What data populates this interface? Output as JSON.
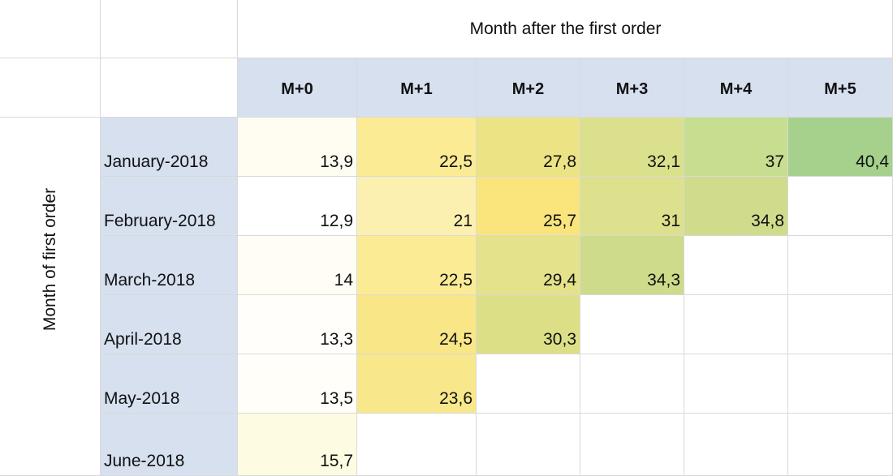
{
  "chart_data": {
    "type": "heatmap",
    "title": "",
    "xlabel": "Month after the first order",
    "ylabel": "Month of first order",
    "columns": [
      "M+0",
      "M+1",
      "M+2",
      "M+3",
      "M+4",
      "M+5"
    ],
    "rows": [
      "January-2018",
      "February-2018",
      "March-2018",
      "April-2018",
      "May-2018",
      "June-2018"
    ],
    "values": [
      [
        "13,9",
        "22,5",
        "27,8",
        "32,1",
        "37",
        "40,4"
      ],
      [
        "12,9",
        "21",
        "25,7",
        "31",
        "34,8",
        null
      ],
      [
        "14",
        "22,5",
        "29,4",
        "34,3",
        null,
        null
      ],
      [
        "13,3",
        "24,5",
        "30,3",
        null,
        null,
        null
      ],
      [
        "13,5",
        "23,6",
        null,
        null,
        null,
        null
      ],
      [
        "15,7",
        null,
        null,
        null,
        null,
        null
      ]
    ],
    "cell_colors": [
      [
        "#fffdf2",
        "#fbeb95",
        "#ece484",
        "#dbe08d",
        "#c7dd90",
        "#a6d18c"
      ],
      [
        "#ffffff",
        "#fcf0b0",
        "#f9e57c",
        "#dde08c",
        "#d0dc8c",
        null
      ],
      [
        "#fffdf4",
        "#fbeb95",
        "#e4e28a",
        "#cddb8a",
        null,
        null
      ],
      [
        "#fffefa",
        "#f9e686",
        "#dcdf86",
        null,
        null,
        null
      ],
      [
        "#fffef9",
        "#f9e78b",
        null,
        null,
        null,
        null
      ],
      [
        "#fefbe3",
        null,
        null,
        null,
        null,
        null
      ]
    ]
  }
}
